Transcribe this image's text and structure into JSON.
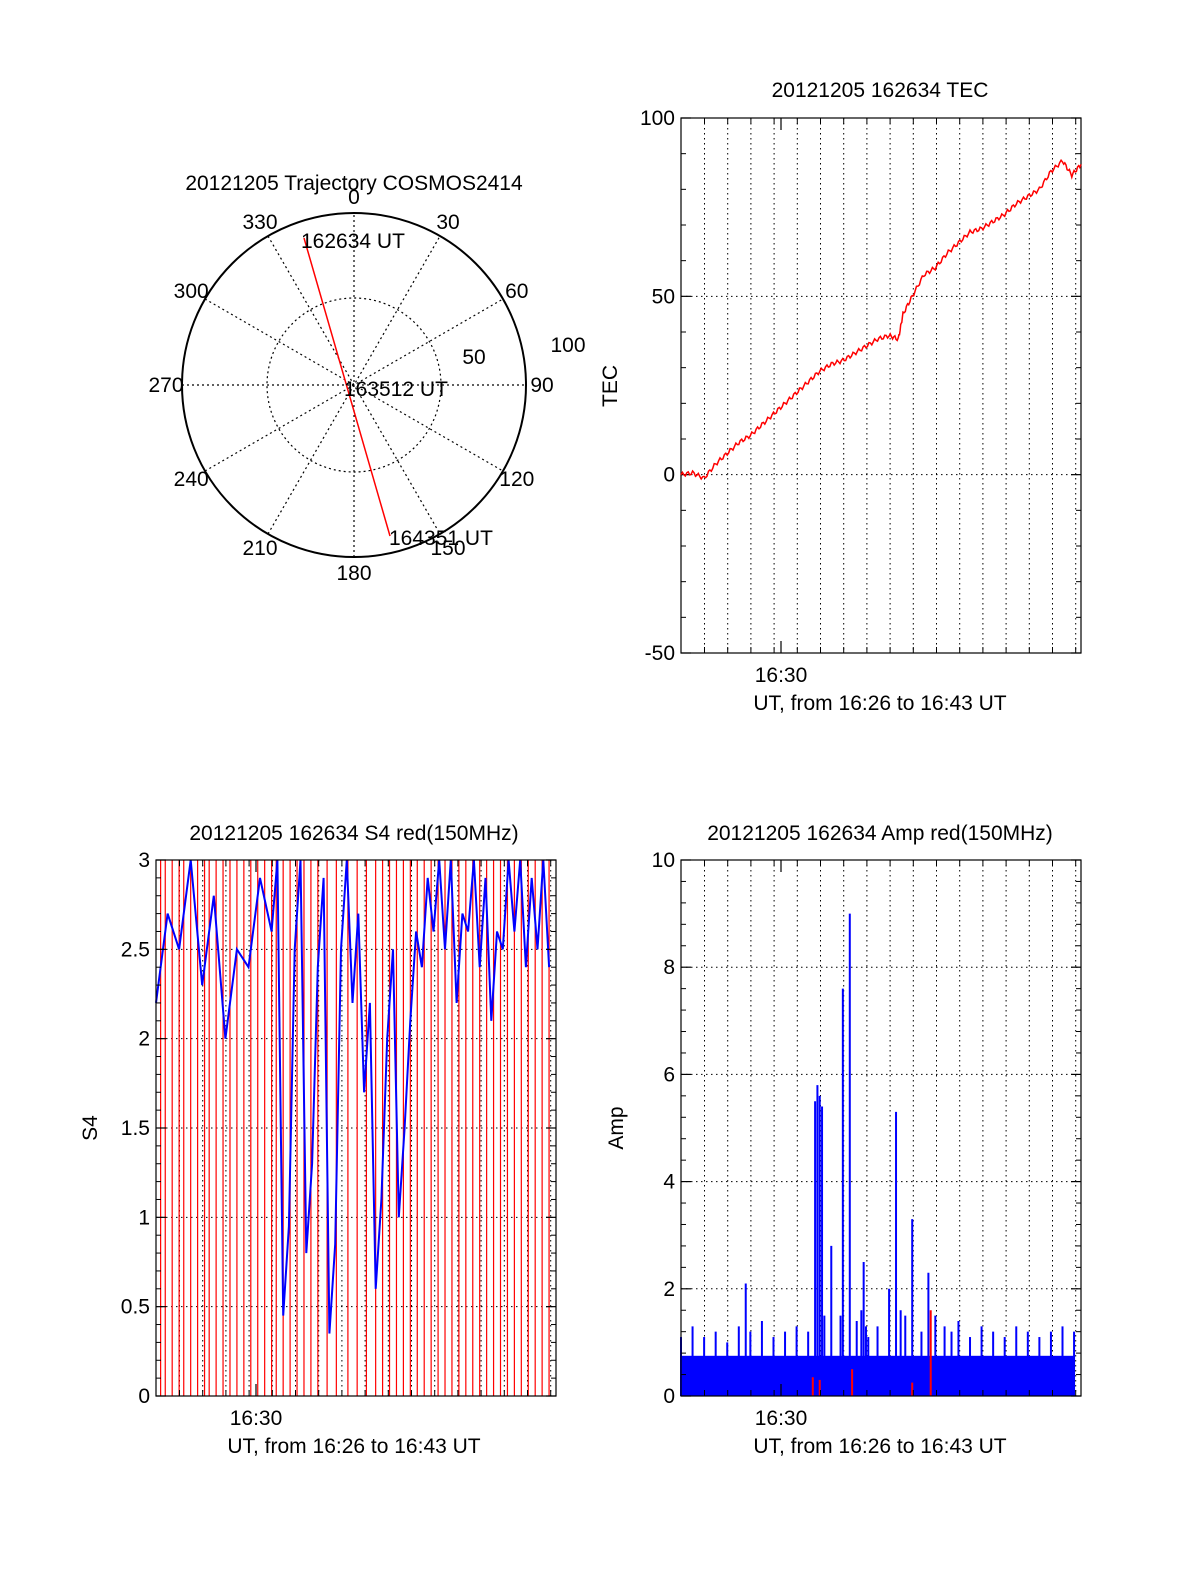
{
  "colors": {
    "red": "#ff0000",
    "blue": "#0000ff",
    "axis": "#000000",
    "grid": "#000000"
  },
  "chart_data": [
    {
      "id": "polar",
      "type": "scatter",
      "title": "20121205 Trajectory COSMOS2414",
      "azimuth_labels": [
        "0",
        "30",
        "60",
        "90",
        "120",
        "150",
        "180",
        "210",
        "240",
        "270",
        "300",
        "330"
      ],
      "radial_labels": [
        "50",
        "100"
      ],
      "elevation_ring": 50,
      "track": {
        "start": {
          "azimuth": 340,
          "zenith_distance": 82
        },
        "end": {
          "azimuth": 160,
          "zenith_distance": 95
        }
      },
      "annotations": [
        "162634 UT",
        "163512 UT",
        "164351 UT"
      ]
    },
    {
      "id": "tec",
      "type": "line",
      "title": "20121205 162634 TEC",
      "xlabel": "UT, from 16:26 to 16:43 UT",
      "ylabel": "TEC",
      "ylim": [
        -50,
        100
      ],
      "yticks": [
        "100",
        "50",
        "0",
        "-50"
      ],
      "xtick_label": "16:30",
      "xlim_minutes": [
        0,
        17.3
      ],
      "series": [
        {
          "color": "red",
          "x": [
            0,
            0.5,
            1,
            1.5,
            2,
            2.5,
            3,
            3.5,
            4,
            4.5,
            5,
            5.5,
            6,
            6.5,
            7,
            7.5,
            8,
            8.5,
            9,
            9.4,
            9.6,
            10,
            10.5,
            11,
            11.5,
            12,
            12.5,
            13,
            13.5,
            14,
            14.5,
            15,
            15.5,
            16,
            16.5,
            16.9,
            17.3
          ],
          "y": [
            0,
            0.5,
            -1,
            3,
            6,
            9,
            11,
            14,
            17,
            20,
            23,
            26,
            29,
            31,
            32,
            34,
            36,
            38,
            39,
            38,
            45,
            50,
            56,
            58,
            62,
            65,
            68,
            69,
            71,
            73,
            76,
            78,
            80,
            85,
            88,
            84,
            87
          ]
        }
      ]
    },
    {
      "id": "s4",
      "type": "bar",
      "title": "20121205 162634 S4 red(150MHz)",
      "xlabel": "UT, from 16:26 to 16:43 UT",
      "ylabel": "S4",
      "ylim": [
        0,
        3
      ],
      "yticks": [
        "3",
        "2.5",
        "2",
        "1.5",
        "1",
        "0.5",
        "0"
      ],
      "xtick_label": "16:30",
      "xlim_minutes": [
        0,
        17.3
      ],
      "series": [
        {
          "name": "",
          "color": "red",
          "x": [
            0.2,
            0.4,
            0.7,
            1,
            1.2,
            1.5,
            1.8,
            2.1,
            2.3,
            2.6,
            2.9,
            3.2,
            3.5,
            3.8,
            4.1,
            4.4,
            4.7,
            5,
            5.2,
            5.5,
            5.8,
            6.1,
            6.4,
            6.7,
            7,
            7.4,
            7.8,
            8.3,
            8.7,
            9.1,
            9.5,
            9.8,
            10.1,
            10.4,
            10.7,
            11,
            11.3,
            11.6,
            11.9,
            12.2,
            12.5,
            12.8,
            13.1,
            13.4,
            13.7,
            14,
            14.3,
            14.6,
            14.9,
            15.2,
            15.5,
            15.8,
            16.1,
            16.4,
            16.7,
            17
          ],
          "y": 3
        },
        {
          "name": "",
          "color": "blue",
          "x": [
            0,
            1,
            2,
            3,
            4,
            5,
            5.5,
            6,
            6.5,
            7,
            7.5,
            8,
            8.5,
            9,
            9.5,
            10,
            10.5,
            11,
            11.5,
            12,
            12.5,
            13,
            13.5,
            14,
            14.5,
            15,
            15.5,
            16,
            16.5,
            17
          ],
          "y": [
            2.2,
            2.5,
            2.3,
            2.0,
            2.4,
            2.6,
            0.45,
            2.5,
            0.8,
            2.4,
            0.35,
            2.5,
            2.2,
            1.7,
            0.6,
            2.0,
            1.0,
            2.1,
            2.4,
            2.6,
            2.5,
            2.2,
            2.6,
            2.4,
            2.1,
            2.5,
            2.6,
            2.4,
            2.5,
            2.4
          ]
        }
      ]
    },
    {
      "id": "amp",
      "type": "bar",
      "title": "20121205 162634 Amp red(150MHz)",
      "xlabel": "UT, from 16:26 to 16:43 UT",
      "ylabel": "Amp",
      "ylim": [
        0,
        10
      ],
      "yticks": [
        "10",
        "8",
        "6",
        "4",
        "2",
        "0"
      ],
      "xtick_label": "16:30",
      "xlim_minutes": [
        0,
        17.3
      ],
      "series": [
        {
          "name": "",
          "color": "blue",
          "x": [
            0,
            0.5,
            1,
            1.5,
            2,
            2.5,
            2.8,
            3,
            3.5,
            4,
            4.5,
            5,
            5.5,
            5.8,
            5.9,
            6,
            6.1,
            6.2,
            6.5,
            6.9,
            7,
            7.3,
            7.6,
            7.8,
            7.9,
            8,
            8.1,
            8.5,
            9,
            9.3,
            9.5,
            9.7,
            10,
            10.4,
            10.7,
            11,
            11.4,
            11.7,
            12,
            12.5,
            13,
            13.5,
            14,
            14.5,
            15,
            15.5,
            16,
            16.5,
            17
          ],
          "y": [
            1.1,
            1.3,
            1.1,
            1.2,
            1.0,
            1.3,
            2.1,
            1.2,
            1.4,
            1.1,
            1.2,
            1.3,
            1.2,
            5.5,
            5.8,
            5.6,
            5.4,
            1.5,
            2.8,
            1.5,
            7.6,
            9.0,
            1.4,
            1.6,
            2.5,
            1.3,
            1.1,
            1.3,
            2.0,
            5.3,
            1.6,
            1.5,
            3.3,
            1.2,
            2.3,
            1.5,
            1.3,
            1.2,
            1.4,
            1.1,
            1.3,
            1.2,
            1.1,
            1.3,
            1.2,
            1.1,
            1.2,
            1.3,
            1.2
          ]
        },
        {
          "name": "",
          "color": "red",
          "x": [
            5.7,
            6.0,
            7.4,
            10.0,
            10.8
          ],
          "y": [
            0.35,
            0.3,
            0.5,
            0.25,
            1.6
          ]
        }
      ]
    }
  ]
}
